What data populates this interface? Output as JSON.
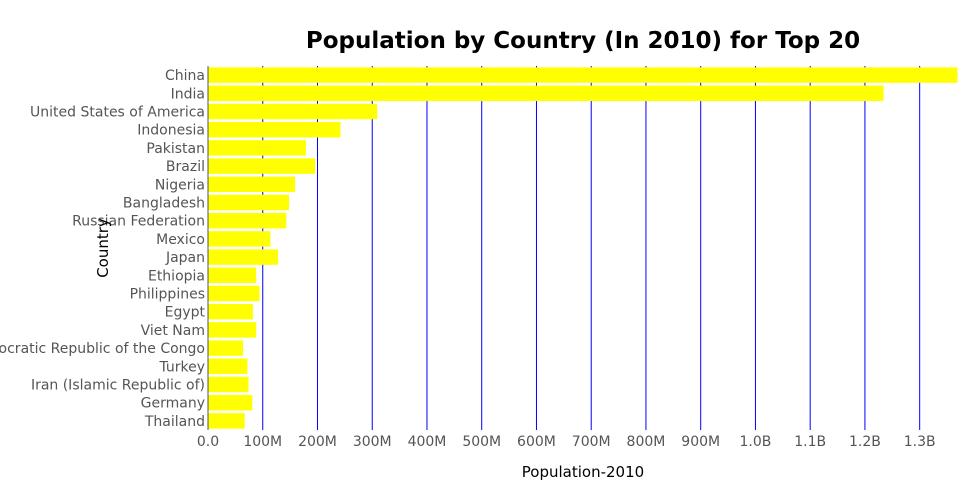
{
  "chart_data": {
    "type": "bar",
    "orientation": "horizontal",
    "title": "Population by Country (In 2010) for Top 20",
    "xlabel": "Population-2010",
    "ylabel": "Country",
    "xlim": [
      0,
      1370000000
    ],
    "x_ticks": [
      {
        "value": 0,
        "label": "0.0"
      },
      {
        "value": 100000000,
        "label": "100M"
      },
      {
        "value": 200000000,
        "label": "200M"
      },
      {
        "value": 300000000,
        "label": "300M"
      },
      {
        "value": 400000000,
        "label": "400M"
      },
      {
        "value": 500000000,
        "label": "500M"
      },
      {
        "value": 600000000,
        "label": "600M"
      },
      {
        "value": 700000000,
        "label": "700M"
      },
      {
        "value": 800000000,
        "label": "800M"
      },
      {
        "value": 900000000,
        "label": "900M"
      },
      {
        "value": 1000000000,
        "label": "1.0B"
      },
      {
        "value": 1100000000,
        "label": "1.1B"
      },
      {
        "value": 1200000000,
        "label": "1.2B"
      },
      {
        "value": 1300000000,
        "label": "1.3B"
      }
    ],
    "grid": "vertical",
    "categories": [
      "China",
      "India",
      "United States of America",
      "Indonesia",
      "Pakistan",
      "Brazil",
      "Nigeria",
      "Bangladesh",
      "Russian Federation",
      "Mexico",
      "Japan",
      "Ethiopia",
      "Philippines",
      "Egypt",
      "Viet Nam",
      "Democratic Republic of the Congo",
      "Turkey",
      "Iran (Islamic Republic of)",
      "Germany",
      "Thailand"
    ],
    "values": [
      1369000000,
      1234000000,
      309000000,
      242000000,
      179000000,
      196000000,
      159000000,
      148000000,
      143000000,
      114000000,
      128000000,
      88000000,
      94000000,
      82000000,
      88000000,
      64000000,
      72000000,
      74000000,
      81000000,
      67000000
    ],
    "colors": {
      "bar": "#ffff00",
      "grid": "#0000ff",
      "axis": "#555555"
    }
  }
}
